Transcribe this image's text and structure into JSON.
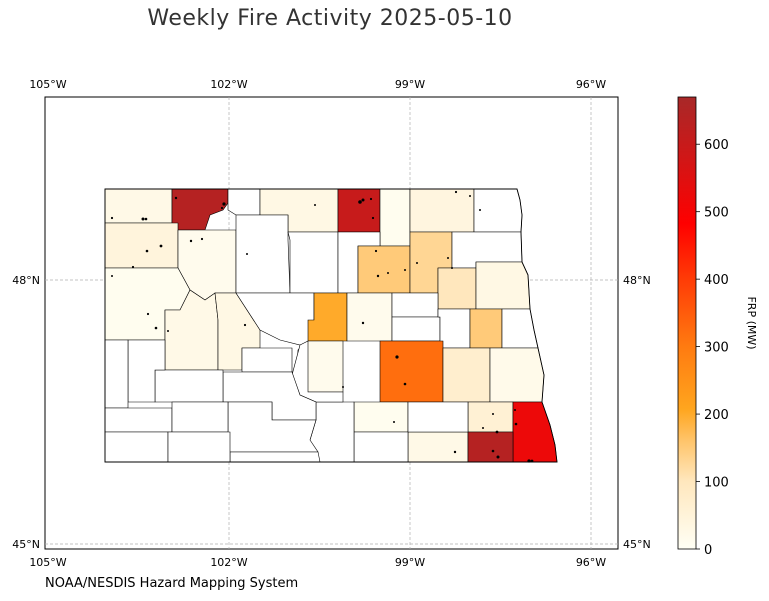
{
  "title": "Weekly Fire Activity 2025-05-10",
  "credit": "NOAA/NESDIS Hazard Mapping System",
  "map": {
    "extent": {
      "lon": [
        -105,
        -95.5
      ],
      "lat": [
        45,
        49.5
      ]
    },
    "lon_ticks": [
      "105°W",
      "102°W",
      "99°W",
      "96°W"
    ],
    "lat_ticks": [
      "48°N",
      "45°N"
    ],
    "gridlines": true
  },
  "colorbar": {
    "label": "FRP (MW)",
    "range": [
      0,
      670
    ],
    "ticks": [
      "0",
      "100",
      "200",
      "300",
      "400",
      "500",
      "600"
    ],
    "colors": [
      "#fffff5",
      "#ffe7bd",
      "#ffc46a",
      "#ffa51e",
      "#ff7a10",
      "#ff3a06",
      "#ff0000",
      "#d21616",
      "#a82828"
    ]
  },
  "chart_data": {
    "type": "heatmap",
    "title": "Weekly Fire Activity 2025-05-10",
    "colorbar_label": "FRP (MW)",
    "vmin": 0,
    "vmax": 670,
    "counties": [
      {
        "id": "divide",
        "frp": 25
      },
      {
        "id": "burke",
        "frp": 640
      },
      {
        "id": "renville",
        "frp": 0
      },
      {
        "id": "bottineau",
        "frp": 30
      },
      {
        "id": "rolette",
        "frp": 600
      },
      {
        "id": "towner",
        "frp": 10
      },
      {
        "id": "cavalier",
        "frp": 40
      },
      {
        "id": "pembina",
        "frp": 0
      },
      {
        "id": "williams",
        "frp": 45
      },
      {
        "id": "mountrail",
        "frp": 15
      },
      {
        "id": "ward",
        "frp": 0
      },
      {
        "id": "mchenry",
        "frp": 0
      },
      {
        "id": "pierce",
        "frp": 0
      },
      {
        "id": "benson",
        "frp": 150
      },
      {
        "id": "ramsey",
        "frp": 130
      },
      {
        "id": "walsh",
        "frp": 0
      },
      {
        "id": "nelson",
        "frp": 100
      },
      {
        "id": "grandforks",
        "frp": 30
      },
      {
        "id": "mckenzie",
        "frp": 10
      },
      {
        "id": "dunn",
        "frp": 25
      },
      {
        "id": "mercer",
        "frp": 30
      },
      {
        "id": "mclean",
        "frp": 0
      },
      {
        "id": "sheridan",
        "frp": 200
      },
      {
        "id": "wells",
        "frp": 15
      },
      {
        "id": "eddy",
        "frp": 0
      },
      {
        "id": "foster",
        "frp": 0
      },
      {
        "id": "griggs",
        "frp": 0
      },
      {
        "id": "steele",
        "frp": 150
      },
      {
        "id": "traill",
        "frp": 0
      },
      {
        "id": "kidder",
        "frp": 15
      },
      {
        "id": "stutsman",
        "frp": 320
      },
      {
        "id": "barnes",
        "frp": 70
      },
      {
        "id": "cass",
        "frp": 20
      },
      {
        "id": "sargent",
        "frp": 60
      },
      {
        "id": "richland",
        "frp": 520
      },
      {
        "id": "dickey",
        "frp": 25
      },
      {
        "id": "ransom",
        "frp": 640
      },
      {
        "id": "lamoure",
        "frp": 10
      },
      {
        "id": "mcintosh",
        "frp": 0
      },
      {
        "id": "logan",
        "frp": 0
      },
      {
        "id": "burleigh",
        "frp": 0
      },
      {
        "id": "oliver",
        "frp": 0
      },
      {
        "id": "morton",
        "frp": 0
      },
      {
        "id": "grant",
        "frp": 0
      },
      {
        "id": "sioux",
        "frp": 0
      },
      {
        "id": "emmons",
        "frp": 0
      },
      {
        "id": "stark",
        "frp": 0
      },
      {
        "id": "billings",
        "frp": 0
      },
      {
        "id": "golden",
        "frp": 0
      },
      {
        "id": "slope",
        "frp": 0
      },
      {
        "id": "hettinger",
        "frp": 0
      },
      {
        "id": "bowman",
        "frp": 0
      },
      {
        "id": "adams",
        "frp": 0
      }
    ]
  }
}
